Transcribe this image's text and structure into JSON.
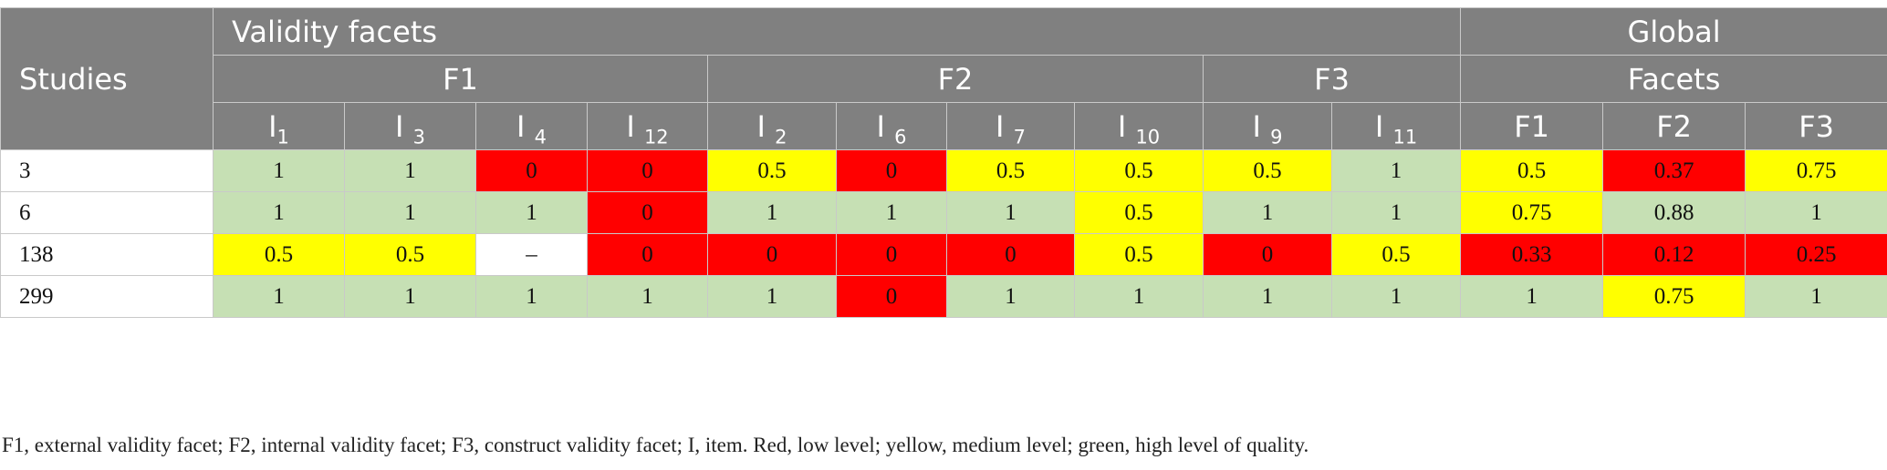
{
  "table": {
    "header": {
      "studies_label": "Studies",
      "validity_facets_label": "Validity facets",
      "global_label": "Global",
      "groups": [
        "F1",
        "F2",
        "F3"
      ],
      "facets_label": "Facets",
      "items": [
        {
          "base": "I",
          "sub": "1"
        },
        {
          "base": "I ",
          "sub": "3"
        },
        {
          "base": "I ",
          "sub": "4"
        },
        {
          "base": "I ",
          "sub": "12"
        },
        {
          "base": "I ",
          "sub": "2"
        },
        {
          "base": "I ",
          "sub": "6"
        },
        {
          "base": "I ",
          "sub": "7"
        },
        {
          "base": "I ",
          "sub": "10"
        },
        {
          "base": "I ",
          "sub": "9"
        },
        {
          "base": "I ",
          "sub": "11"
        }
      ],
      "global_facets": [
        "F1",
        "F2",
        "F3"
      ]
    },
    "rows": [
      {
        "study": "3",
        "cells": [
          {
            "value": "1",
            "level": "high"
          },
          {
            "value": "1",
            "level": "high"
          },
          {
            "value": "0",
            "level": "low"
          },
          {
            "value": "0",
            "level": "low"
          },
          {
            "value": "0.5",
            "level": "medium"
          },
          {
            "value": "0",
            "level": "low"
          },
          {
            "value": "0.5",
            "level": "medium"
          },
          {
            "value": "0.5",
            "level": "medium"
          },
          {
            "value": "0.5",
            "level": "medium"
          },
          {
            "value": "1",
            "level": "high"
          },
          {
            "value": "0.5",
            "level": "medium"
          },
          {
            "value": "0.37",
            "level": "low"
          },
          {
            "value": "0.75",
            "level": "medium"
          }
        ]
      },
      {
        "study": "6",
        "cells": [
          {
            "value": "1",
            "level": "high"
          },
          {
            "value": "1",
            "level": "high"
          },
          {
            "value": "1",
            "level": "high"
          },
          {
            "value": "0",
            "level": "low"
          },
          {
            "value": "1",
            "level": "high"
          },
          {
            "value": "1",
            "level": "high"
          },
          {
            "value": "1",
            "level": "high"
          },
          {
            "value": "0.5",
            "level": "medium"
          },
          {
            "value": "1",
            "level": "high"
          },
          {
            "value": "1",
            "level": "high"
          },
          {
            "value": "0.75",
            "level": "medium"
          },
          {
            "value": "0.88",
            "level": "high"
          },
          {
            "value": "1",
            "level": "high"
          }
        ]
      },
      {
        "study": "138",
        "cells": [
          {
            "value": "0.5",
            "level": "medium"
          },
          {
            "value": "0.5",
            "level": "medium"
          },
          {
            "value": "–",
            "level": "none"
          },
          {
            "value": "0",
            "level": "low"
          },
          {
            "value": "0",
            "level": "low"
          },
          {
            "value": "0",
            "level": "low"
          },
          {
            "value": "0",
            "level": "low"
          },
          {
            "value": "0.5",
            "level": "medium"
          },
          {
            "value": "0",
            "level": "low"
          },
          {
            "value": "0.5",
            "level": "medium"
          },
          {
            "value": "0.33",
            "level": "low"
          },
          {
            "value": "0.12",
            "level": "low"
          },
          {
            "value": "0.25",
            "level": "low"
          }
        ]
      },
      {
        "study": "299",
        "cells": [
          {
            "value": "1",
            "level": "high"
          },
          {
            "value": "1",
            "level": "high"
          },
          {
            "value": "1",
            "level": "high"
          },
          {
            "value": "1",
            "level": "high"
          },
          {
            "value": "1",
            "level": "high"
          },
          {
            "value": "0",
            "level": "low"
          },
          {
            "value": "1",
            "level": "high"
          },
          {
            "value": "1",
            "level": "high"
          },
          {
            "value": "1",
            "level": "high"
          },
          {
            "value": "1",
            "level": "high"
          },
          {
            "value": "1",
            "level": "high"
          },
          {
            "value": "0.75",
            "level": "medium"
          },
          {
            "value": "1",
            "level": "high"
          }
        ]
      }
    ]
  },
  "colors": {
    "header_bg": "#808080",
    "low": "#ff0000",
    "medium": "#ffff00",
    "high": "#c6e0b4"
  },
  "footnote": "F1, external validity facet; F2, internal validity facet; F3, construct validity facet; I, item. Red, low level; yellow, medium level; green, high level of quality."
}
